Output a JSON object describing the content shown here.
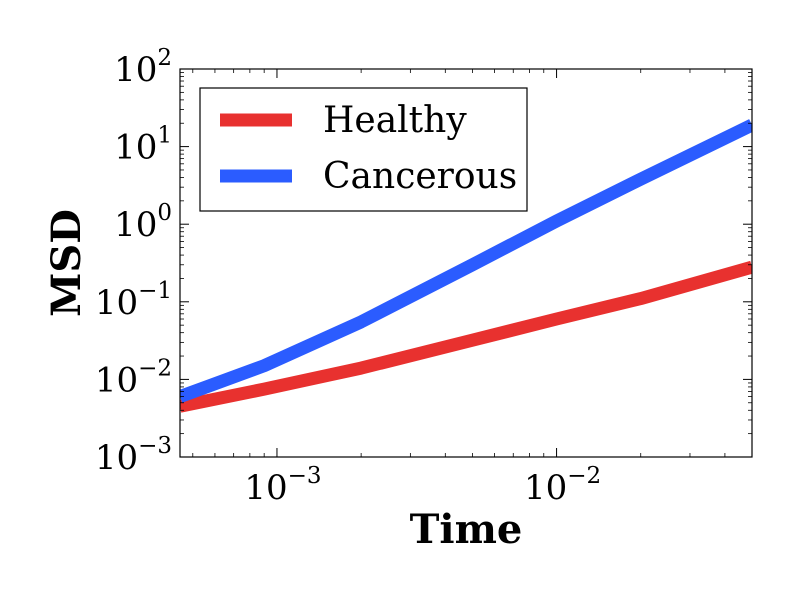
{
  "chart_data": {
    "type": "line",
    "title": "",
    "xlabel": "Time",
    "ylabel": "MSD",
    "xscale": "log",
    "yscale": "log",
    "xlim": [
      0.00045,
      0.05
    ],
    "ylim": [
      0.001,
      100
    ],
    "x_ticks": [
      {
        "value": 0.001,
        "base": "10",
        "exp": "−3"
      },
      {
        "value": 0.01,
        "base": "10",
        "exp": "−2"
      }
    ],
    "y_ticks": [
      {
        "value": 0.001,
        "base": "10",
        "exp": "−3"
      },
      {
        "value": 0.01,
        "base": "10",
        "exp": "−2"
      },
      {
        "value": 0.1,
        "base": "10",
        "exp": "−1"
      },
      {
        "value": 1,
        "base": "10",
        "exp": "0"
      },
      {
        "value": 10,
        "base": "10",
        "exp": "1"
      },
      {
        "value": 100,
        "base": "10",
        "exp": "2"
      }
    ],
    "grid": false,
    "legend_position": "top-left",
    "series": [
      {
        "name": "Healthy",
        "color": "#e8312f",
        "x": [
          0.00045,
          0.0009,
          0.002,
          0.005,
          0.01,
          0.02,
          0.05
        ],
        "y": [
          0.0045,
          0.0075,
          0.014,
          0.032,
          0.06,
          0.11,
          0.28
        ]
      },
      {
        "name": "Cancerous",
        "color": "#2b5cff",
        "x": [
          0.00045,
          0.0009,
          0.002,
          0.005,
          0.01,
          0.02,
          0.05
        ],
        "y": [
          0.006,
          0.015,
          0.055,
          0.3,
          1.1,
          3.8,
          19
        ]
      }
    ]
  }
}
